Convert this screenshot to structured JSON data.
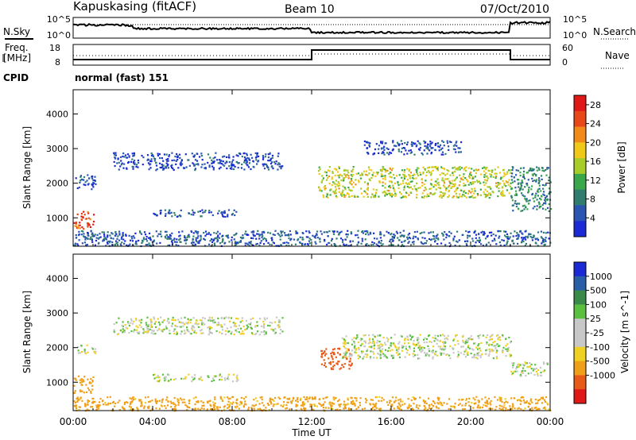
{
  "header": {
    "station": "Kapuskasing (fitACF)",
    "beam": "Beam 10",
    "date": "07/Oct/2010"
  },
  "noise_panel": {
    "left_label": "N.Sky",
    "right_label": "N.Search",
    "ticks_left": [
      "10^5",
      "10^0"
    ],
    "ticks_right": [
      "10^5",
      "10^0"
    ]
  },
  "freq_panel": {
    "left_label_line1": "Freq.",
    "left_label_line2": "[MHz]",
    "left_ticks": [
      "18",
      "8"
    ],
    "right_ticks": [
      "60",
      "0"
    ],
    "right_label": "Nave"
  },
  "cpid": {
    "label": "CPID",
    "value": "normal (fast) 151"
  },
  "x_axis": {
    "label": "Time UT",
    "tick_labels": [
      "00:00",
      "04:00",
      "08:00",
      "12:00",
      "16:00",
      "20:00",
      "00:00"
    ]
  },
  "colors": {
    "power_scale": [
      "#1a2bd6",
      "#2a55b0",
      "#2e7d6e",
      "#3aa84a",
      "#a8cc2a",
      "#f0c818",
      "#f08a18",
      "#e84818",
      "#e01818"
    ],
    "velocity_scale": [
      "#e01818",
      "#e85a18",
      "#f0a018",
      "#f0d020",
      "#c8c8c8",
      "#c8c8c8",
      "#5ac040",
      "#3a8a4a",
      "#2a5fa8",
      "#1a2bd6"
    ]
  },
  "chart_data": [
    {
      "type": "heatmap",
      "title": "",
      "xlabel": "Time UT",
      "ylabel": "Slant Range [km]",
      "xlim": [
        "00:00",
        "24:00"
      ],
      "ylim": [
        180,
        4700
      ],
      "y_ticks": [
        1000,
        2000,
        3000,
        4000
      ],
      "colorbar": {
        "label": "Power [dB]",
        "tick_labels": [
          "4",
          "8",
          "12",
          "16",
          "20",
          "24",
          "28"
        ],
        "range": [
          0,
          30
        ]
      },
      "echo_regions": [
        {
          "t_start": 0.1,
          "t_end": 1.1,
          "range_low": 1850,
          "range_high": 2300,
          "value": 5
        },
        {
          "t_start": 2.0,
          "t_end": 10.5,
          "range_low": 2400,
          "range_high": 2900,
          "value": 4
        },
        {
          "t_start": 4.0,
          "t_end": 8.3,
          "range_low": 1050,
          "range_high": 1250,
          "value": 6
        },
        {
          "t_start": 0.0,
          "t_end": 1.0,
          "range_low": 700,
          "range_high": 1200,
          "value": 28
        },
        {
          "t_start": 12.3,
          "t_end": 22.0,
          "range_low": 1600,
          "range_high": 2500,
          "value": 18
        },
        {
          "t_start": 14.5,
          "t_end": 19.5,
          "range_low": 2850,
          "range_high": 3250,
          "value": 4
        },
        {
          "t_start": 22.0,
          "t_end": 24.0,
          "range_low": 1200,
          "range_high": 2500,
          "value": 10
        },
        {
          "t_start": 0.0,
          "t_end": 24.0,
          "range_low": 200,
          "range_high": 650,
          "value": 6
        }
      ]
    },
    {
      "type": "heatmap",
      "title": "",
      "xlabel": "Time UT",
      "ylabel": "Slant Range [km]",
      "xlim": [
        "00:00",
        "24:00"
      ],
      "ylim": [
        180,
        4700
      ],
      "y_ticks": [
        1000,
        2000,
        3000,
        4000
      ],
      "colorbar": {
        "label": "Velocity [m s^-1]",
        "tick_labels": [
          "1000",
          "500",
          "100",
          "25",
          "-25",
          "-100",
          "-500",
          "-1000"
        ],
        "range": [
          -1000,
          1000
        ]
      },
      "echo_regions": [
        {
          "t_start": 0.1,
          "t_end": 1.1,
          "range_low": 1850,
          "range_high": 2100,
          "value": 0
        },
        {
          "t_start": 2.0,
          "t_end": 10.5,
          "range_low": 2400,
          "range_high": 2900,
          "value": 0
        },
        {
          "t_start": 4.0,
          "t_end": 8.3,
          "range_low": 1050,
          "range_high": 1250,
          "value": 0
        },
        {
          "t_start": 0.0,
          "t_end": 1.0,
          "range_low": 700,
          "range_high": 1200,
          "value": -250
        },
        {
          "t_start": 12.4,
          "t_end": 14.0,
          "range_low": 1400,
          "range_high": 2000,
          "value": -700
        },
        {
          "t_start": 13.5,
          "t_end": 22.0,
          "range_low": 1700,
          "range_high": 2400,
          "value": 0
        },
        {
          "t_start": 22.0,
          "t_end": 24.0,
          "range_low": 1200,
          "range_high": 1600,
          "value": 0
        },
        {
          "t_start": 0.0,
          "t_end": 24.0,
          "range_low": 200,
          "range_high": 600,
          "value": -150
        }
      ]
    }
  ]
}
